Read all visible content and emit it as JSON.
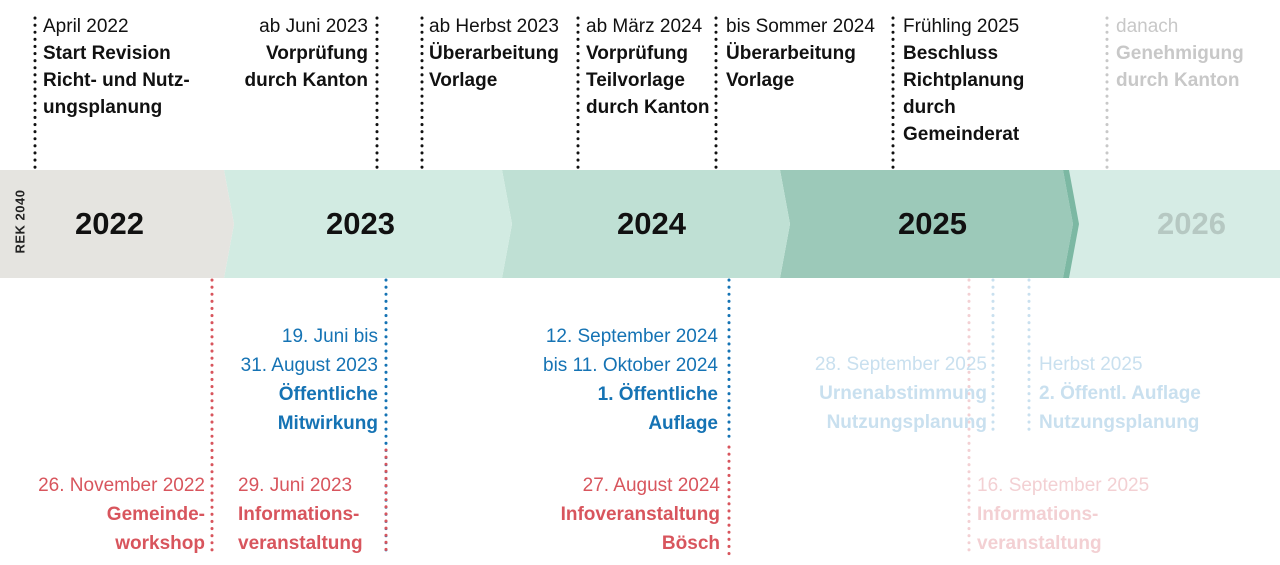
{
  "side_label": "REK 2040",
  "years": [
    "2022",
    "2023",
    "2024",
    "2025",
    "2026"
  ],
  "top_milestones": [
    {
      "date": "April 2022",
      "title": [
        "Start Revision",
        "Richt- und Nutz-",
        "ungsplanung"
      ]
    },
    {
      "date": "ab Juni 2023",
      "title": [
        "Vorprüfung",
        "durch Kanton"
      ]
    },
    {
      "date": "ab Herbst 2023",
      "title": [
        "Überarbeitung",
        "Vorlage"
      ]
    },
    {
      "date": "ab März 2024",
      "title": [
        "Vorprüfung",
        "Teilvorlage",
        "durch Kanton"
      ]
    },
    {
      "date": "bis Sommer 2024",
      "title": [
        "Überarbeitung",
        "Vorlage"
      ]
    },
    {
      "date": "Frühling 2025",
      "title": [
        "Beschluss",
        "Richtplanung",
        "durch",
        "Gemeinderat"
      ]
    },
    {
      "date": "danach",
      "title": [
        "Genehmigung",
        "durch Kanton"
      ]
    }
  ],
  "participation_milestones": [
    {
      "date": [
        "19. Juni bis",
        "31. August 2023"
      ],
      "title": [
        "Öffentliche",
        "Mitwirkung"
      ]
    },
    {
      "date": [
        "12. September 2024",
        "bis 11. Oktober 2024"
      ],
      "title": [
        "1. Öffentliche",
        "Auflage"
      ]
    },
    {
      "date": [
        "28. September 2025"
      ],
      "title": [
        "Urnenabstimmung",
        "Nutzungsplanung"
      ]
    },
    {
      "date": [
        "Herbst 2025"
      ],
      "title": [
        "2. Öffentl. Auflage",
        "Nutzungsplanung"
      ]
    }
  ],
  "event_milestones": [
    {
      "date": "26. November 2022",
      "title": [
        "Gemeinde-",
        "workshop"
      ]
    },
    {
      "date": "29. Juni 2023",
      "title": [
        "Informations-",
        "veranstaltung"
      ]
    },
    {
      "date": "27. August 2024",
      "title": [
        "Infoveranstaltung",
        "Bösch"
      ]
    },
    {
      "date": "16. September 2025",
      "title": [
        "Informations-",
        "veranstaltung"
      ]
    }
  ],
  "colors": {
    "band_2022": "#e5e4e0",
    "band_2023": "#d2ebe2",
    "band_2024": "#bfe0d4",
    "band_2025": "#9cc9b9",
    "band_2026": "#d6ece5",
    "event_red": "#d8555d",
    "participation_blue": "#1573b4",
    "future_gray": "#c8c8c8"
  }
}
